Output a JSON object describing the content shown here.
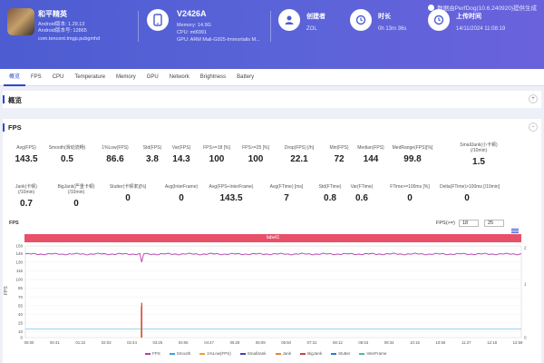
{
  "watermark": {
    "text": "数据由PerfDog(10.6.240920)提供生成"
  },
  "app": {
    "name": "和平精英",
    "android_version": "Android版本: 1.29.13",
    "android_build": "Android版本号: 12865",
    "package": "com.tencent.tmgp.pubgmhd"
  },
  "device": {
    "name": "V2426A",
    "memory": "Memory: 14.9G",
    "cpu": "CPU: mt6991",
    "gpu": "GPU: ARM Mali-G925-Immortalis M..."
  },
  "stats": [
    {
      "label": "创建者",
      "value": "ZOL",
      "icon": "user-icon"
    },
    {
      "label": "时长",
      "value": "0h 13m 36s",
      "icon": "clock-icon"
    },
    {
      "label": "上传时间",
      "value": "14/11/2024 11:08:19",
      "icon": "clock-icon"
    }
  ],
  "tabs": [
    "概览",
    "FPS",
    "CPU",
    "Temperature",
    "Memory",
    "GPU",
    "Network",
    "Brightness",
    "Battery"
  ],
  "overview_panel": {
    "title": "概览",
    "toggle": "+"
  },
  "fps_panel": {
    "title": "FPS",
    "toggle": "−"
  },
  "metrics_row1": [
    {
      "label": "Avg(FPS)",
      "value": "143.5"
    },
    {
      "label": "Smooth(滑动流畅)",
      "value": "0.5"
    },
    {
      "label": "1%Low(FPS)",
      "value": "86.6"
    },
    {
      "label": "Std(FPS)",
      "value": "3.8"
    },
    {
      "label": "Var(FPS)",
      "value": "14.3"
    },
    {
      "label": "FPS>=18 [%]",
      "value": "100"
    },
    {
      "label": "FPS>=25 [%]",
      "value": "100"
    },
    {
      "label": "Drop(FPS) [/h]",
      "value": "22.1"
    },
    {
      "label": "Min(FPS)",
      "value": "72"
    },
    {
      "label": "Median(FPS)",
      "value": "144"
    },
    {
      "label": "MedRange(FPS)[%]",
      "value": "99.8"
    },
    {
      "label": "SmallJank(小卡顿)\n(/10min)",
      "value": "1.5"
    }
  ],
  "metrics_row2": [
    {
      "label": "Jank(卡顿)\n(/10min)",
      "value": "0.7"
    },
    {
      "label": "BigJank(严重卡顿)\n(/10min)",
      "value": "0"
    },
    {
      "label": "Stutter(卡顿率)[%]",
      "value": "0"
    },
    {
      "label": "Avg(InterFrame)",
      "value": "0"
    },
    {
      "label": "Avg(FPS+InterFrame)",
      "value": "143.5"
    },
    {
      "label": "Avg(FTime) [ms]",
      "value": "7"
    },
    {
      "label": "Std(FTime)",
      "value": "0.8"
    },
    {
      "label": "Var(FTime)",
      "value": "0.6"
    },
    {
      "label": "FTime>=100ms [%]",
      "value": "0"
    },
    {
      "label": "Delta(FTime)>100ms [/10min]",
      "value": "0"
    }
  ],
  "chart_header": {
    "title": "FPS",
    "threshold_label": "FPS(>=)",
    "threshold_1": "18",
    "threshold_2": "25"
  },
  "label_bar": "label1",
  "chart_data": {
    "type": "line",
    "ylabel": "FPS",
    "y_ticks": [
      "158",
      "145",
      "130",
      "115",
      "100",
      "85",
      "70",
      "55",
      "40",
      "25",
      "10",
      "0"
    ],
    "y2_ticks": [
      "2",
      "1",
      "0"
    ],
    "x_ticks": [
      "00:00",
      "00:41",
      "01:22",
      "02:03",
      "02:44",
      "03:25",
      "04:06",
      "04:47",
      "05:28",
      "06:09",
      "06:50",
      "07:31",
      "08:12",
      "08:53",
      "09:34",
      "10:15",
      "10:56",
      "11:37",
      "12:18",
      "12:59"
    ],
    "ylim": [
      0,
      158
    ],
    "series": [
      {
        "name": "FPS",
        "color": "#b53fa8"
      },
      {
        "name": "Smooth",
        "color": "#3aa0e8"
      },
      {
        "name": "1%Low(FPS)",
        "color": "#f0a030"
      },
      {
        "name": "SmallJank",
        "color": "#4040c0"
      },
      {
        "name": "Jank",
        "color": "#f08030"
      },
      {
        "name": "BigJank",
        "color": "#d04040"
      },
      {
        "name": "Stutter",
        "color": "#2080e0"
      },
      {
        "name": "InterFrame",
        "color": "#40c0a0"
      }
    ],
    "fps_baseline": 144,
    "fps_dip_value": 130,
    "smooth_baseline": 15,
    "spike_value": 60
  }
}
